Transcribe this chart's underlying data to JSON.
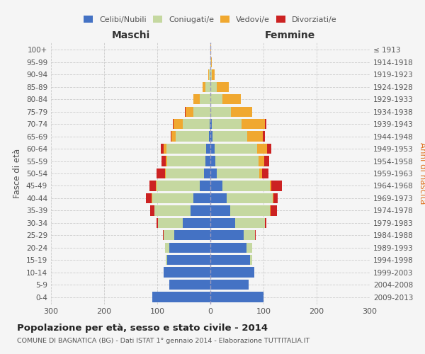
{
  "age_groups": [
    "0-4",
    "5-9",
    "10-14",
    "15-19",
    "20-24",
    "25-29",
    "30-34",
    "35-39",
    "40-44",
    "45-49",
    "50-54",
    "55-59",
    "60-64",
    "65-69",
    "70-74",
    "75-79",
    "80-84",
    "85-89",
    "90-94",
    "95-99",
    "100+"
  ],
  "birth_years": [
    "2009-2013",
    "2004-2008",
    "1999-2003",
    "1994-1998",
    "1989-1993",
    "1984-1988",
    "1979-1983",
    "1974-1978",
    "1969-1973",
    "1964-1968",
    "1959-1963",
    "1954-1958",
    "1949-1953",
    "1944-1948",
    "1939-1943",
    "1934-1938",
    "1929-1933",
    "1924-1928",
    "1919-1923",
    "1914-1918",
    "≤ 1913"
  ],
  "male_celibi": [
    110,
    78,
    88,
    82,
    78,
    68,
    52,
    38,
    32,
    20,
    12,
    9,
    8,
    3,
    2,
    0,
    0,
    0,
    0,
    0,
    0
  ],
  "male_coniugati": [
    0,
    0,
    0,
    2,
    8,
    20,
    47,
    68,
    78,
    82,
    72,
    72,
    75,
    62,
    50,
    32,
    20,
    10,
    3,
    0,
    0
  ],
  "male_vedovi": [
    0,
    0,
    0,
    0,
    0,
    0,
    0,
    0,
    1,
    1,
    2,
    3,
    5,
    8,
    18,
    15,
    12,
    5,
    1,
    0,
    0
  ],
  "male_divorziati": [
    0,
    0,
    0,
    0,
    0,
    1,
    3,
    8,
    10,
    12,
    15,
    8,
    5,
    2,
    1,
    1,
    0,
    0,
    0,
    0,
    0
  ],
  "female_celibi": [
    100,
    72,
    82,
    75,
    68,
    62,
    47,
    37,
    30,
    22,
    12,
    9,
    8,
    4,
    3,
    0,
    0,
    0,
    0,
    0,
    0
  ],
  "female_coniugati": [
    0,
    0,
    0,
    3,
    10,
    22,
    55,
    75,
    87,
    90,
    80,
    82,
    80,
    65,
    55,
    38,
    22,
    12,
    3,
    1,
    0
  ],
  "female_vedovi": [
    0,
    0,
    0,
    0,
    0,
    0,
    0,
    1,
    1,
    2,
    5,
    10,
    18,
    30,
    45,
    40,
    35,
    22,
    5,
    2,
    1
  ],
  "female_divorziati": [
    0,
    0,
    0,
    0,
    0,
    1,
    3,
    12,
    8,
    20,
    12,
    10,
    8,
    4,
    2,
    1,
    0,
    0,
    0,
    0,
    0
  ],
  "colors": {
    "celibi": "#4472c4",
    "coniugati": "#c5d8a0",
    "vedovi": "#f0a830",
    "divorziati": "#cc2222"
  },
  "title": "Popolazione per età, sesso e stato civile - 2014",
  "subtitle": "COMUNE DI BAGNATICA (BG) - Dati ISTAT 1° gennaio 2014 - Elaborazione TUTTITALIA.IT",
  "xlabel_left": "Maschi",
  "xlabel_right": "Femmine",
  "ylabel_left": "Fasce di età",
  "ylabel_right": "Anni di nascita",
  "xlim": 300,
  "bg_color": "#f5f5f5",
  "grid_color": "#cccccc"
}
